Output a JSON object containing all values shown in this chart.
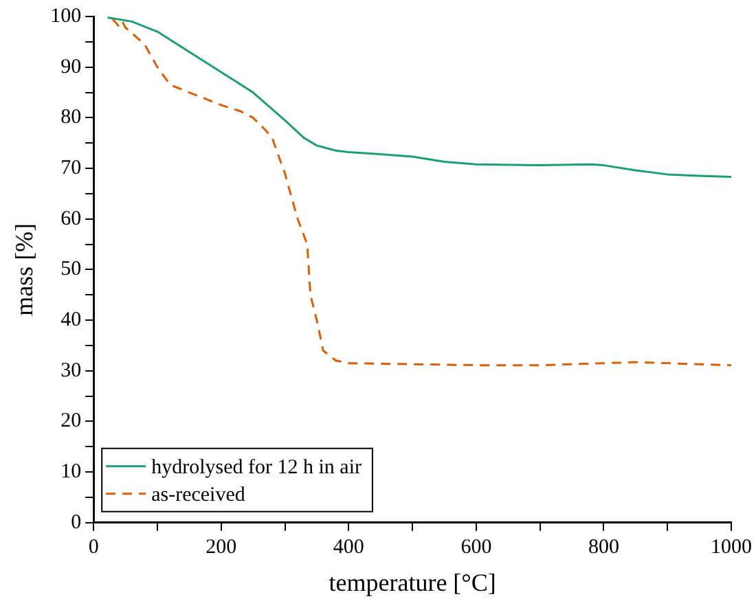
{
  "chart_data": {
    "type": "line",
    "xlabel": "temperature [°C]",
    "ylabel": "mass [%]",
    "xlim": [
      0,
      1000
    ],
    "ylim": [
      0,
      100
    ],
    "xticks": [
      0,
      {
        "value": 100,
        "label": null
      },
      200,
      {
        "value": 300,
        "label": null
      },
      400,
      {
        "value": 500,
        "label": null
      },
      600,
      {
        "value": 700,
        "label": null
      },
      800,
      {
        "value": 900,
        "label": null
      },
      1000
    ],
    "yticks": [
      0,
      {
        "value": 5,
        "label": null
      },
      10,
      {
        "value": 15,
        "label": null
      },
      20,
      {
        "value": 25,
        "label": null
      },
      30,
      {
        "value": 35,
        "label": null
      },
      40,
      {
        "value": 45,
        "label": null
      },
      50,
      {
        "value": 55,
        "label": null
      },
      60,
      {
        "value": 65,
        "label": null
      },
      70,
      {
        "value": 75,
        "label": null
      },
      80,
      {
        "value": 85,
        "label": null
      },
      90,
      {
        "value": 95,
        "label": null
      },
      100
    ],
    "grid": false,
    "legend": "bottom left",
    "marker": "none",
    "series": [
      {
        "name": "hydrolysed for 12 h in air",
        "color": "#1b9e77",
        "line_style": "solid",
        "x": [
          22,
          60,
          100,
          150,
          200,
          250,
          300,
          330,
          350,
          380,
          400,
          450,
          500,
          550,
          600,
          700,
          780,
          800,
          850,
          900,
          950,
          1000
        ],
        "values": [
          99.8,
          99,
          97,
          93,
          89,
          85,
          79.5,
          76,
          74.5,
          73.5,
          73.2,
          72.8,
          72.3,
          71.3,
          70.8,
          70.6,
          70.8,
          70.6,
          69.6,
          68.8,
          68.5,
          68.3
        ]
      },
      {
        "name": "as-received",
        "color": "#d95f02",
        "line_style": "dashed",
        "x": [
          30,
          40,
          45,
          50,
          80,
          100,
          120,
          150,
          200,
          230,
          250,
          270,
          280,
          300,
          320,
          335,
          340,
          350,
          360,
          380,
          400,
          500,
          600,
          700,
          800,
          850,
          950,
          1000
        ],
        "values": [
          99.5,
          98,
          99,
          97.8,
          94.5,
          90,
          86.5,
          85,
          82.5,
          81.3,
          80,
          77.5,
          76,
          69,
          60,
          55,
          45,
          40,
          34,
          32,
          31.5,
          31.3,
          31.1,
          31.1,
          31.5,
          31.7,
          31.3,
          31.1
        ]
      }
    ]
  }
}
